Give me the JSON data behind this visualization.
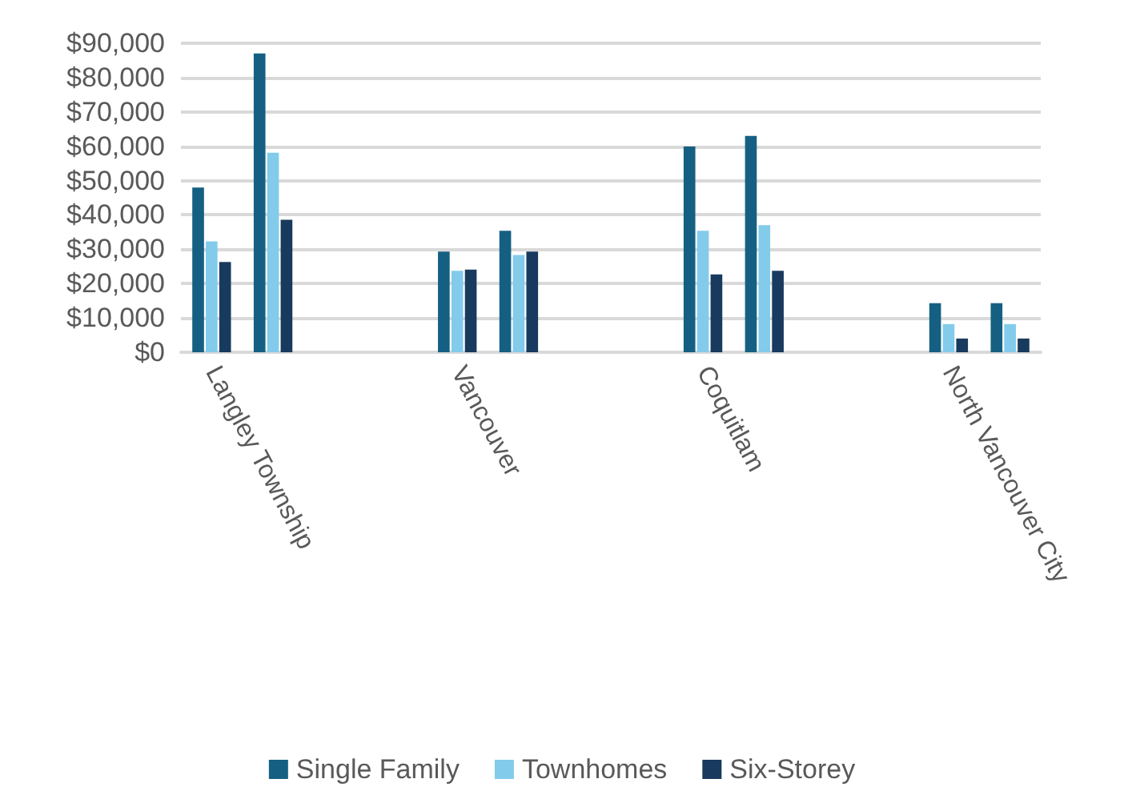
{
  "chart_data": {
    "type": "bar",
    "categories": [
      "Langley Township",
      null,
      null,
      null,
      "Vancouver",
      null,
      null,
      null,
      "Coquitlam",
      null,
      null,
      null,
      "North Vancouver City",
      null
    ],
    "series": [
      {
        "name": "Single Family",
        "color": "#156082",
        "values": [
          48000,
          87000,
          null,
          null,
          29300,
          35400,
          null,
          null,
          59900,
          63000,
          null,
          null,
          14300,
          14300
        ]
      },
      {
        "name": "Townhomes",
        "color": "#83cbeb",
        "values": [
          32300,
          58100,
          null,
          null,
          23700,
          28300,
          null,
          null,
          35400,
          37000,
          null,
          null,
          8200,
          8200
        ]
      },
      {
        "name": "Six-Storey",
        "color": "#183a5e",
        "values": [
          26300,
          38600,
          null,
          null,
          24100,
          29300,
          null,
          null,
          22700,
          23700,
          null,
          null,
          4000,
          4000
        ]
      }
    ],
    "ylim": [
      0,
      90000
    ],
    "yticks": [
      {
        "value": 0,
        "label": "$0"
      },
      {
        "value": 10000,
        "label": "$10,000"
      },
      {
        "value": 20000,
        "label": "$20,000"
      },
      {
        "value": 30000,
        "label": "$30,000"
      },
      {
        "value": 40000,
        "label": "$40,000"
      },
      {
        "value": 50000,
        "label": "$50,000"
      },
      {
        "value": 60000,
        "label": "$60,000"
      },
      {
        "value": 70000,
        "label": "$70,000"
      },
      {
        "value": 80000,
        "label": "$80,000"
      },
      {
        "value": 90000,
        "label": "$90,000"
      }
    ],
    "grid": "y",
    "legend": "bottom"
  }
}
